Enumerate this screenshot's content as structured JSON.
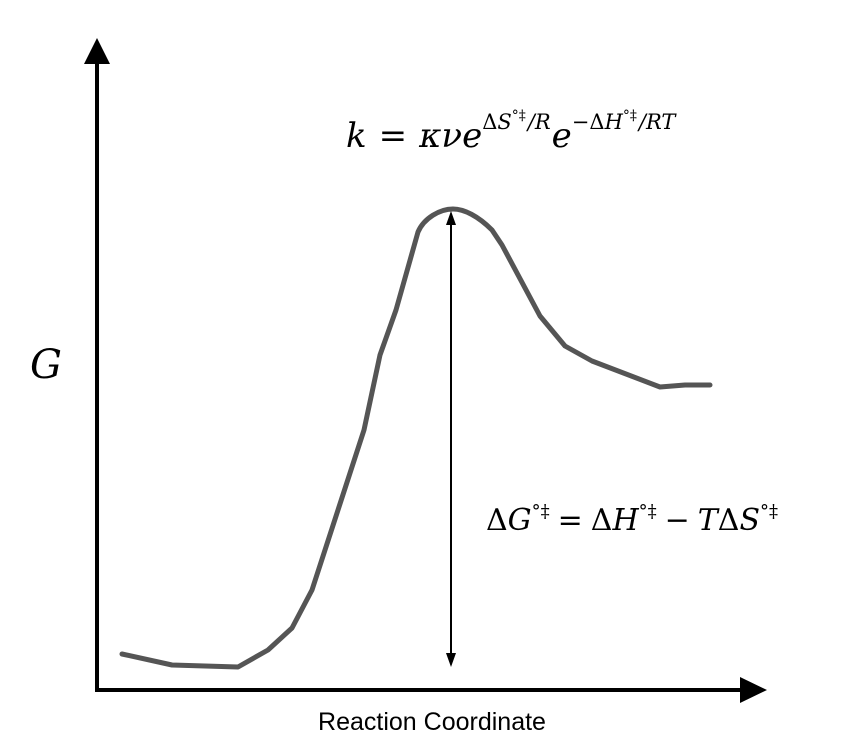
{
  "diagram": {
    "y_axis_label": "G",
    "x_axis_label": "Reaction Coordinate",
    "rate_equation": {
      "k": "k",
      "equals": "=",
      "prefactor": "κν",
      "e1": "e",
      "e1_exponent_delta": "Δ",
      "e1_exponent_symbol": "S",
      "e1_exponent_superscript": "°‡",
      "e1_exponent_tail": "/R",
      "e2": "e",
      "e2_exponent_sign": "−",
      "e2_exponent_delta": "Δ",
      "e2_exponent_symbol": "H",
      "e2_exponent_superscript": "°‡",
      "e2_exponent_tail": "/RT"
    },
    "gibbs_equation": {
      "lhs_delta": "Δ",
      "lhs_symbol": "G",
      "lhs_superscript": "°‡",
      "equals": "=",
      "h_delta": "Δ",
      "h_symbol": "H",
      "h_superscript": "°‡",
      "minus": "−",
      "t_symbol": "T",
      "s_delta": "Δ",
      "s_symbol": "S",
      "s_superscript": "°‡"
    },
    "colors": {
      "axis": "#000000",
      "curve": "#555555",
      "arrow": "#000000"
    }
  }
}
